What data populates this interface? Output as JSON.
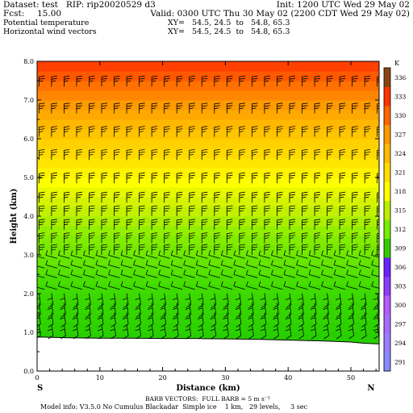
{
  "header": {
    "dataset_line": "Dataset: test   RIP: rip20020529 d3",
    "init_line": "Init: 1200 UTC Wed 29 May 02",
    "fcst_label": "Fcst:",
    "fcst_value": "15.00",
    "valid_line": "Valid: 0300 UTC Thu 30 May 02 (2200 CDT Wed 29 May 02)",
    "field1": "Potential temperature",
    "field1_xy": "XY=   54.5, 24.5  to   54.8, 65.3",
    "field2": "Horizontal wind vectors",
    "field2_xy": "XY=   54.5, 24.5  to   54.8, 65.3"
  },
  "footer": {
    "barb_note": "BARB VECTORS:  FULL BARB = 5 m s⁻¹",
    "model_info": "Model info: V3.5.0 No Cumulus Blackadar  Simple ice    1 km,   29 levels,     3 sec"
  },
  "chart_data": {
    "type": "heatmap",
    "title": "Potential temperature / Horizontal wind vectors",
    "xlabel": "Distance (km)",
    "ylabel": "Height (km)",
    "xlim": [
      0,
      54.5
    ],
    "ylim": [
      0.0,
      8.0
    ],
    "x_ticks": [
      0,
      10,
      20,
      30,
      40,
      50
    ],
    "y_ticks": [
      "0.0",
      "1.0",
      "2.0",
      "3.0",
      "4.0",
      "5.0",
      "6.0",
      "7.0",
      "8.0"
    ],
    "x_end_labels": {
      "left": "S",
      "right": "N"
    },
    "colorbar": {
      "unit": "K",
      "levels": [
        291,
        294,
        297,
        300,
        303,
        306,
        309,
        312,
        315,
        318,
        321,
        324,
        327,
        330,
        333,
        336
      ],
      "colors": [
        "#8a8aff",
        "#9a7fff",
        "#a86cff",
        "#b35cff",
        "#8c3cff",
        "#6a20ff",
        "#33cc00",
        "#77ee00",
        "#bbee00",
        "#ffff00",
        "#ffdd00",
        "#ffbb00",
        "#ff9900",
        "#ff6600",
        "#ff3300",
        "#8b4513"
      ]
    },
    "terrain_height_km": [
      0.88,
      0.86,
      0.85,
      0.85,
      0.84,
      0.84,
      0.83,
      0.82,
      0.8,
      0.78,
      0.75,
      0.72,
      0.7
    ],
    "terrain_x_km": [
      0,
      5,
      10,
      15,
      20,
      25,
      30,
      35,
      40,
      45,
      50,
      52,
      54.5
    ],
    "theta_profile": {
      "height_km": [
        0.9,
        1.5,
        2.0,
        2.5,
        3.0,
        3.5,
        4.0,
        4.5,
        5.0,
        5.5,
        6.0,
        6.5,
        7.0,
        7.5,
        8.0
      ],
      "theta_K": [
        306.5,
        307.5,
        308.3,
        309.5,
        310.8,
        312.0,
        314.0,
        316.0,
        318.5,
        320.8,
        322.5,
        325.0,
        327.5,
        330.0,
        333.0
      ]
    },
    "barb_levels_km": [
      1.0,
      1.3,
      1.55,
      1.8,
      2.15,
      2.45,
      2.7,
      2.95,
      3.25,
      3.55,
      3.9,
      4.25,
      4.6,
      5.1,
      5.7,
      6.3,
      6.9,
      7.6
    ],
    "grid": false
  }
}
